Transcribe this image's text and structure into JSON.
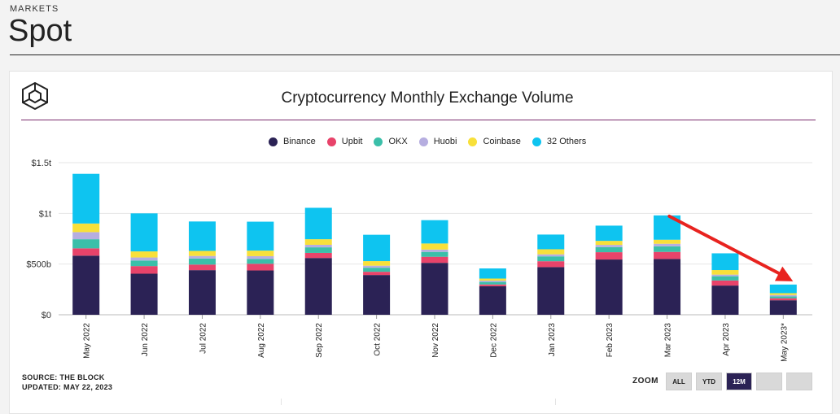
{
  "page": {
    "section_label": "MARKETS",
    "title": "Spot"
  },
  "chart_data": {
    "type": "bar",
    "stacked": true,
    "title": "Cryptocurrency Monthly Exchange Volume",
    "categories": [
      "May 2022",
      "Jun 2022",
      "Jul 2022",
      "Aug 2022",
      "Sep 2022",
      "Oct 2022",
      "Nov 2022",
      "Dec 2022",
      "Jan 2023",
      "Feb 2023",
      "Mar 2023",
      "Apr 2023",
      "May 2023*"
    ],
    "series": [
      {
        "name": "Binance",
        "color": "#2b2255",
        "values": [
          583,
          405,
          440,
          437,
          560,
          392,
          512,
          282,
          470,
          545,
          550,
          288,
          143
        ]
      },
      {
        "name": "Upbit",
        "color": "#e8436a",
        "values": [
          72,
          75,
          55,
          66,
          50,
          32,
          60,
          17,
          58,
          72,
          70,
          50,
          20
        ]
      },
      {
        "name": "OKX",
        "color": "#3bbfa9",
        "values": [
          90,
          55,
          60,
          47,
          55,
          40,
          48,
          25,
          48,
          50,
          55,
          42,
          18
        ]
      },
      {
        "name": "Huobi",
        "color": "#b6aee0",
        "values": [
          70,
          30,
          25,
          28,
          25,
          20,
          23,
          13,
          20,
          22,
          25,
          16,
          14
        ]
      },
      {
        "name": "Coinbase",
        "color": "#f8e03a",
        "values": [
          85,
          60,
          50,
          55,
          55,
          45,
          60,
          20,
          50,
          40,
          40,
          45,
          18
        ]
      },
      {
        "name": "32 Others",
        "color": "#0ec4f0",
        "values": [
          490,
          375,
          290,
          285,
          310,
          260,
          230,
          100,
          145,
          150,
          240,
          165,
          85
        ]
      }
    ],
    "ylim": [
      0,
      1500
    ],
    "yticks": [
      {
        "value": 0,
        "label": "$0"
      },
      {
        "value": 500,
        "label": "$500b"
      },
      {
        "value": 1000,
        "label": "$1t"
      },
      {
        "value": 1500,
        "label": "$1.5t"
      }
    ],
    "grid": true,
    "legend_position": "top-center",
    "annotation": "red arrow pointing to May 2023* bar"
  },
  "footer": {
    "source": "SOURCE: THE BLOCK",
    "updated": "UPDATED: MAY 22, 2023"
  },
  "zoom": {
    "label": "ZOOM",
    "buttons": [
      "ALL",
      "YTD",
      "12M",
      "",
      ""
    ],
    "active": "12M"
  }
}
